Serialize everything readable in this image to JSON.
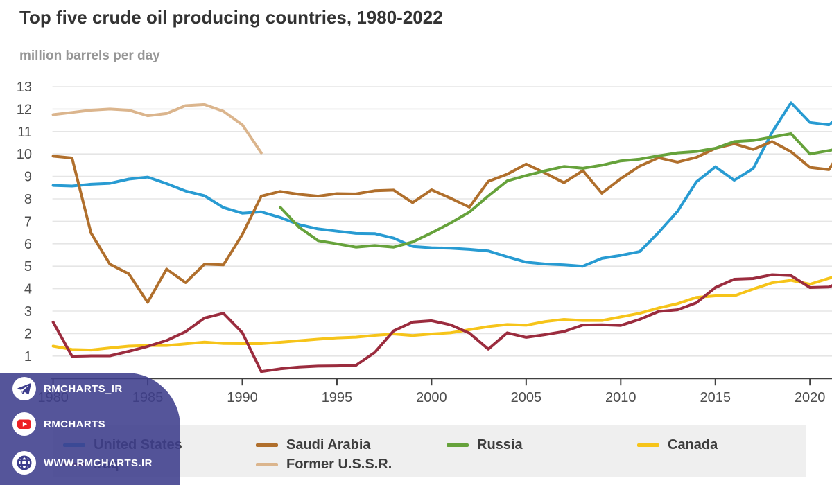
{
  "title": "Top five crude oil producing countries, 1980-2022",
  "subtitle": "million barrels per day",
  "watermark": {
    "panel_color": "#3D3D8C",
    "items": [
      {
        "icon": "telegram-icon",
        "label": "RMCHARTS_IR"
      },
      {
        "icon": "youtube-icon",
        "label": "RMCHARTS"
      },
      {
        "icon": "globe-icon",
        "label": "WWW.RMCHARTS.IR"
      }
    ]
  },
  "chart_data": {
    "type": "line",
    "title": "Top five crude oil producing countries, 1980-2022",
    "ylabel": "million barrels per day",
    "x_start": 1980,
    "x_end": 2022,
    "x_ticks": [
      1980,
      1985,
      1990,
      1995,
      2000,
      2005,
      2010,
      2015,
      2020
    ],
    "y_ticks": [
      1,
      2,
      3,
      4,
      5,
      6,
      7,
      8,
      9,
      10,
      11,
      12,
      13
    ],
    "ylim": [
      0,
      13.5
    ],
    "grid": true,
    "legend_position": "bottom",
    "grid_color": "#e5e5e5",
    "axis_color": "#404040",
    "tick_label_color": "#4d4d4d",
    "series": [
      {
        "name": "United States",
        "color": "#289BD2",
        "start_year": 1980,
        "values": [
          8.6,
          8.57,
          8.65,
          8.69,
          8.88,
          8.97,
          8.68,
          8.35,
          8.14,
          7.61,
          7.36,
          7.42,
          7.17,
          6.85,
          6.66,
          6.56,
          6.46,
          6.45,
          6.25,
          5.88,
          5.82,
          5.8,
          5.75,
          5.68,
          5.42,
          5.18,
          5.1,
          5.06,
          5.0,
          5.35,
          5.48,
          5.65,
          6.5,
          7.44,
          8.76,
          9.43,
          8.83,
          9.35,
          10.96,
          12.28,
          11.4,
          11.3,
          11.9
        ]
      },
      {
        "name": "Saudi Arabia",
        "color": "#B06F2C",
        "start_year": 1980,
        "values": [
          9.9,
          9.82,
          6.48,
          5.09,
          4.66,
          3.39,
          4.87,
          4.27,
          5.09,
          5.06,
          6.41,
          8.12,
          8.33,
          8.2,
          8.12,
          8.23,
          8.22,
          8.36,
          8.39,
          7.83,
          8.4,
          8.03,
          7.63,
          8.78,
          9.1,
          9.55,
          9.15,
          8.72,
          9.26,
          8.25,
          8.9,
          9.46,
          9.83,
          9.64,
          9.85,
          10.25,
          10.45,
          10.2,
          10.55,
          10.1,
          9.4,
          9.3,
          10.6
        ]
      },
      {
        "name": "Russia",
        "color": "#66A23B",
        "start_year": 1992,
        "values": [
          7.63,
          6.73,
          6.14,
          6.0,
          5.85,
          5.92,
          5.85,
          6.08,
          6.48,
          6.92,
          7.41,
          8.13,
          8.8,
          9.04,
          9.25,
          9.44,
          9.36,
          9.5,
          9.69,
          9.77,
          9.92,
          10.05,
          10.11,
          10.25,
          10.55,
          10.6,
          10.75,
          10.9,
          10.0,
          10.15,
          10.3
        ]
      },
      {
        "name": "Canada",
        "color": "#F6C41A",
        "start_year": 1980,
        "values": [
          1.44,
          1.29,
          1.27,
          1.36,
          1.44,
          1.47,
          1.47,
          1.54,
          1.62,
          1.56,
          1.55,
          1.55,
          1.61,
          1.68,
          1.75,
          1.81,
          1.84,
          1.92,
          1.98,
          1.91,
          1.98,
          2.03,
          2.17,
          2.31,
          2.4,
          2.37,
          2.53,
          2.63,
          2.58,
          2.58,
          2.74,
          2.9,
          3.14,
          3.33,
          3.61,
          3.68,
          3.68,
          3.98,
          4.26,
          4.37,
          4.2,
          4.46,
          4.7
        ]
      },
      {
        "name": "Iraq",
        "color": "#9B2C3E",
        "start_year": 1980,
        "values": [
          2.51,
          0.99,
          1.01,
          1.01,
          1.21,
          1.43,
          1.69,
          2.08,
          2.69,
          2.9,
          2.04,
          0.31,
          0.43,
          0.51,
          0.55,
          0.56,
          0.58,
          1.16,
          2.12,
          2.51,
          2.57,
          2.39,
          2.02,
          1.31,
          2.03,
          1.83,
          1.95,
          2.09,
          2.38,
          2.39,
          2.36,
          2.63,
          2.98,
          3.06,
          3.37,
          4.05,
          4.42,
          4.45,
          4.62,
          4.58,
          4.05,
          4.07,
          4.45
        ]
      },
      {
        "name": "Former U.S.S.R.",
        "color": "#DBB58D",
        "start_year": 1980,
        "values": [
          11.75,
          11.85,
          11.95,
          12.0,
          11.95,
          11.7,
          11.8,
          12.15,
          12.2,
          11.9,
          11.3,
          10.05
        ]
      }
    ]
  }
}
